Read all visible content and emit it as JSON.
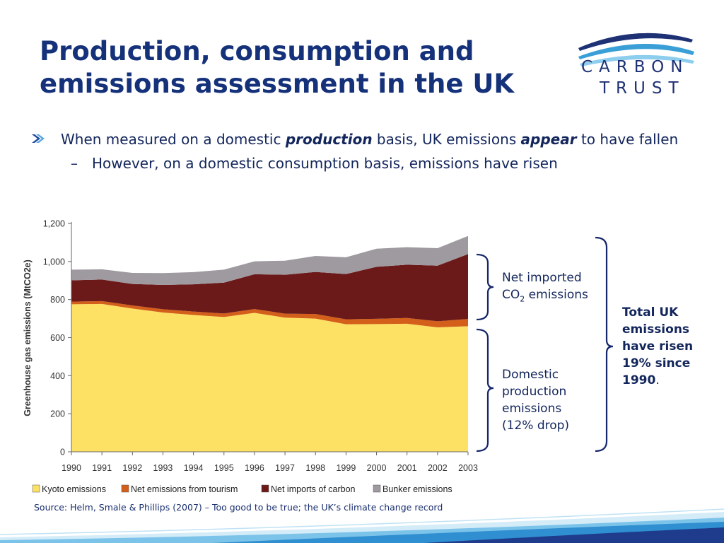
{
  "slide": {
    "title_line1": "Production, consumption and",
    "title_line2": "emissions assessment in the UK",
    "logo": {
      "word1": "CARBON",
      "word2": "TRUST"
    },
    "bullet": {
      "part1": "When measured on a domestic ",
      "em1": "production",
      "part2": " basis, UK emissions ",
      "em2": "appear",
      "part3": " to have fallen",
      "sub": "However, on a domestic consumption basis, emissions have risen",
      "sub_dash": "–"
    },
    "annotations": {
      "net_imported_line1": "Net imported",
      "net_imported_line2a": "CO",
      "net_imported_line2sub": "2",
      "net_imported_line2b": " emissions",
      "domestic_line1": "Domestic",
      "domestic_line2": "production",
      "domestic_line3": "emissions",
      "domestic_line4": "(12% drop)",
      "total_line1": "Total UK",
      "total_line2": "emissions",
      "total_line3": "have risen",
      "total_line4": "19% since",
      "total_line5": "1990",
      "total_period": "."
    },
    "source": "Source: Helm, Smale & Phillips (2007) – Too good to be true; the UK’s climate change record",
    "colors": {
      "title": "#14317a",
      "text": "#13265c",
      "bracket": "#15266a",
      "kyoto": "#fde165",
      "tourism": "#d35f1a",
      "imports": "#6b1919",
      "bunker": "#9e9aa0"
    }
  },
  "chart_data": {
    "type": "area",
    "stacked": true,
    "ylabel": "Greenhouse gas emissions (MtCO2e)",
    "xlabel": "",
    "ylim": [
      0,
      1200
    ],
    "yticks": [
      0,
      200,
      400,
      600,
      800,
      1000,
      1200
    ],
    "ytick_labels": [
      "0",
      "200",
      "400",
      "600",
      "800",
      "1,000",
      "1,200"
    ],
    "grid": false,
    "legend_position": "bottom",
    "x": [
      "1990",
      "1991",
      "1992",
      "1993",
      "1994",
      "1995",
      "1996",
      "1997",
      "1998",
      "1999",
      "2000",
      "2001",
      "2002",
      "2003"
    ],
    "series": [
      {
        "name": "Kyoto emissions",
        "color": "#fde165",
        "values": [
          775,
          777,
          753,
          732,
          719,
          708,
          730,
          705,
          700,
          670,
          671,
          673,
          654,
          660
        ]
      },
      {
        "name": "Net emissions from tourism",
        "color": "#d35f1a",
        "values": [
          14,
          15,
          16,
          17,
          18,
          19,
          20,
          21,
          24,
          26,
          28,
          30,
          32,
          38
        ]
      },
      {
        "name": "Net imports of carbon",
        "color": "#6b1919",
        "values": [
          112,
          113,
          113,
          128,
          143,
          162,
          183,
          204,
          221,
          238,
          273,
          280,
          292,
          341
        ]
      },
      {
        "name": "Bunker emissions",
        "color": "#9e9aa0",
        "values": [
          56,
          54,
          58,
          62,
          64,
          68,
          68,
          74,
          84,
          88,
          95,
          92,
          92,
          95
        ]
      }
    ]
  }
}
